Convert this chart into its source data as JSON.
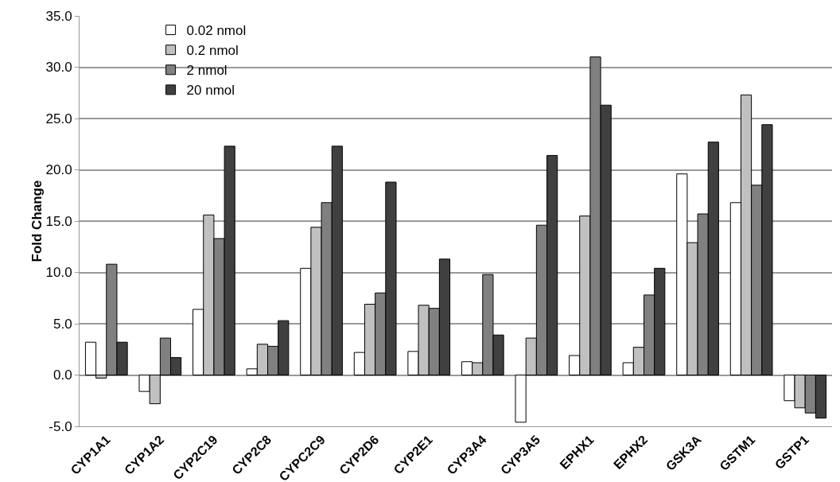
{
  "chart_data": {
    "type": "bar",
    "ylabel": "Fold Change",
    "categories": [
      "CYP1A1",
      "CYP1A2",
      "CYP2C19",
      "CYP2C8",
      "CYPC2C9",
      "CYP2D6",
      "CYP2E1",
      "CYP3A4",
      "CYP3A5",
      "EPHX1",
      "EPHX2",
      "GSK3A",
      "GSTM1",
      "GSTP1"
    ],
    "series": [
      {
        "name": "0.02 nmol",
        "color": "#ffffff",
        "values": [
          3.2,
          -1.6,
          6.4,
          0.6,
          10.4,
          2.2,
          2.3,
          1.3,
          -4.6,
          1.9,
          1.2,
          19.6,
          16.8,
          -2.5
        ]
      },
      {
        "name": "0.2 nmol",
        "color": "#c0c0c0",
        "values": [
          -0.3,
          -2.8,
          15.6,
          3.0,
          14.4,
          6.9,
          6.8,
          1.2,
          3.6,
          15.5,
          2.7,
          12.9,
          27.3,
          -3.2
        ]
      },
      {
        "name": "2 nmol",
        "color": "#808080",
        "values": [
          10.8,
          3.6,
          13.3,
          2.8,
          16.8,
          8.0,
          6.5,
          9.8,
          14.6,
          31.0,
          7.8,
          15.7,
          18.5,
          -3.7
        ]
      },
      {
        "name": "20 nmol",
        "color": "#404040",
        "values": [
          3.2,
          1.7,
          22.3,
          5.3,
          22.3,
          18.8,
          11.3,
          3.9,
          21.4,
          26.3,
          10.4,
          22.7,
          24.4,
          -4.2
        ]
      }
    ],
    "ylim": [
      -5,
      35
    ],
    "yticks": [
      {
        "value": -5,
        "label": "-5.0"
      },
      {
        "value": 0,
        "label": "0.0"
      },
      {
        "value": 5,
        "label": "5.0"
      },
      {
        "value": 10,
        "label": "10.0"
      },
      {
        "value": 15,
        "label": "15.0"
      },
      {
        "value": 20,
        "label": "20.0"
      },
      {
        "value": 25,
        "label": "25.0"
      },
      {
        "value": 30,
        "label": "30.0"
      },
      {
        "value": 35,
        "label": "35.0"
      }
    ],
    "grid": "y",
    "legend": "top left"
  }
}
